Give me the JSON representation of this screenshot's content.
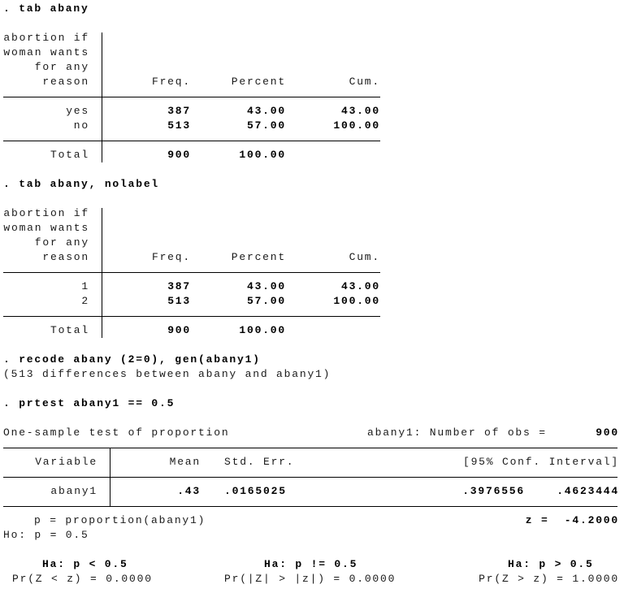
{
  "commands": {
    "tab1": ". tab abany",
    "tab2": ". tab abany, nolabel",
    "recode": ". recode abany (2=0), gen(abany1)",
    "recode_result": "(513 differences between abany and abany1)",
    "prtest": ". prtest abany1 == 0.5"
  },
  "tab1": {
    "var_label": [
      "abortion if",
      "woman wants",
      "for any",
      "reason"
    ],
    "headers": [
      "Freq.",
      "Percent",
      "Cum."
    ],
    "rows": [
      {
        "label": "yes",
        "freq": "387",
        "percent": "43.00",
        "cum": "43.00"
      },
      {
        "label": "no",
        "freq": "513",
        "percent": "57.00",
        "cum": "100.00"
      }
    ],
    "total": {
      "label": "Total",
      "freq": "900",
      "percent": "100.00"
    }
  },
  "tab2": {
    "var_label": [
      "abortion if",
      "woman wants",
      "for any",
      "reason"
    ],
    "headers": [
      "Freq.",
      "Percent",
      "Cum."
    ],
    "rows": [
      {
        "label": "1",
        "freq": "387",
        "percent": "43.00",
        "cum": "43.00"
      },
      {
        "label": "2",
        "freq": "513",
        "percent": "57.00",
        "cum": "100.00"
      }
    ],
    "total": {
      "label": "Total",
      "freq": "900",
      "percent": "100.00"
    }
  },
  "prtest": {
    "title": "One-sample test of proportion",
    "obs_label": "abany1: Number of obs =",
    "obs_value": "900",
    "headers": {
      "variable": "Variable",
      "mean": "Mean",
      "se": "Std. Err.",
      "ci": "[95% Conf. Interval]"
    },
    "row": {
      "variable": "abany1",
      "mean": ".43",
      "se": ".0165025",
      "ci_low": ".3976556",
      "ci_high": ".4623444"
    },
    "p_def": "p = proportion(abany1)",
    "z_stat": "z =  -4.2000",
    "h0": "Ho: p = 0.5",
    "ha": [
      {
        "hyp": "Ha: p < 0.5",
        "pr": "Pr(Z < z) = 0.0000"
      },
      {
        "hyp": "Ha: p != 0.5",
        "pr": "Pr(|Z| > |z|) = 0.0000"
      },
      {
        "hyp": "Ha: p > 0.5",
        "pr": "Pr(Z > z) = 1.0000"
      }
    ]
  }
}
